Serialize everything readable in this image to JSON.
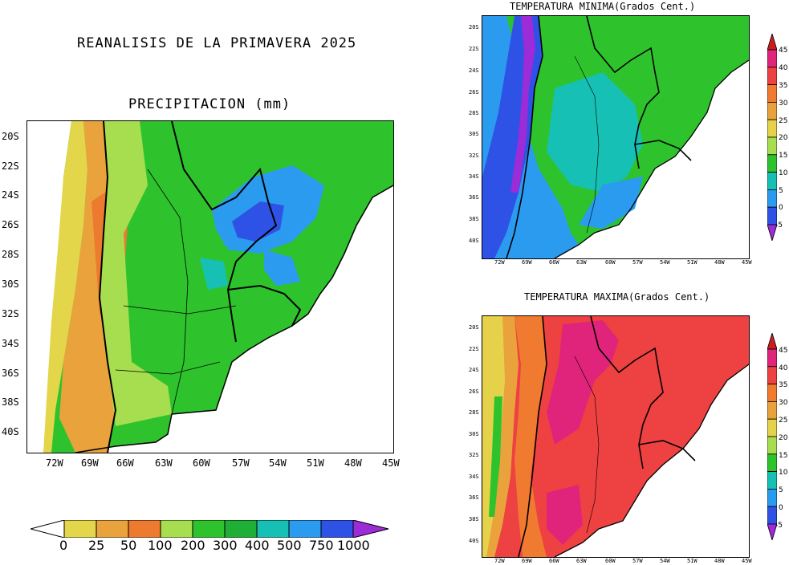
{
  "titles": {
    "main": "REANALISIS DE LA PRIMAVERA 2025",
    "precip": "PRECIPITACION (mm)",
    "tmin": "TEMPERATURA MINIMA(Grados Cent.)",
    "tmax": "TEMPERATURA MAXIMA(Grados Cent.)"
  },
  "lat_labels_big": [
    "20S",
    "22S",
    "24S",
    "26S",
    "28S",
    "30S",
    "32S",
    "34S",
    "36S",
    "38S",
    "40S"
  ],
  "lon_labels_big": [
    "72W",
    "69W",
    "66W",
    "63W",
    "60W",
    "57W",
    "54W",
    "51W",
    "48W",
    "45W"
  ],
  "lat_labels_small": [
    "20S",
    "22S",
    "24S",
    "26S",
    "28S",
    "30S",
    "32S",
    "34S",
    "36S",
    "38S",
    "40S"
  ],
  "lon_labels_small": [
    "72W",
    "69W",
    "66W",
    "63W",
    "60W",
    "57W",
    "54W",
    "51W",
    "48W",
    "45W"
  ],
  "precip_scale": {
    "labels": [
      "0",
      "25",
      "50",
      "100",
      "200",
      "300",
      "400",
      "500",
      "750",
      "1000"
    ],
    "colors": [
      "#ffffff",
      "#e3d64a",
      "#eaa33c",
      "#ec7a2f",
      "#a7de4f",
      "#2ec32d",
      "#1fae36",
      "#16c0b4",
      "#2b9bf0",
      "#2f52e6",
      "#9c2bd8"
    ]
  },
  "temp_scale": {
    "labels": [
      "45",
      "40",
      "35",
      "30",
      "25",
      "20",
      "15",
      "10",
      "5",
      "0",
      "-5"
    ],
    "colors": [
      "#c81e1e",
      "#e0247b",
      "#ee4141",
      "#f07a30",
      "#e8a23d",
      "#e6d24a",
      "#a7de4f",
      "#2ec32d",
      "#16c0b4",
      "#2b9bf0",
      "#2f52e6",
      "#9c2bd8"
    ]
  }
}
